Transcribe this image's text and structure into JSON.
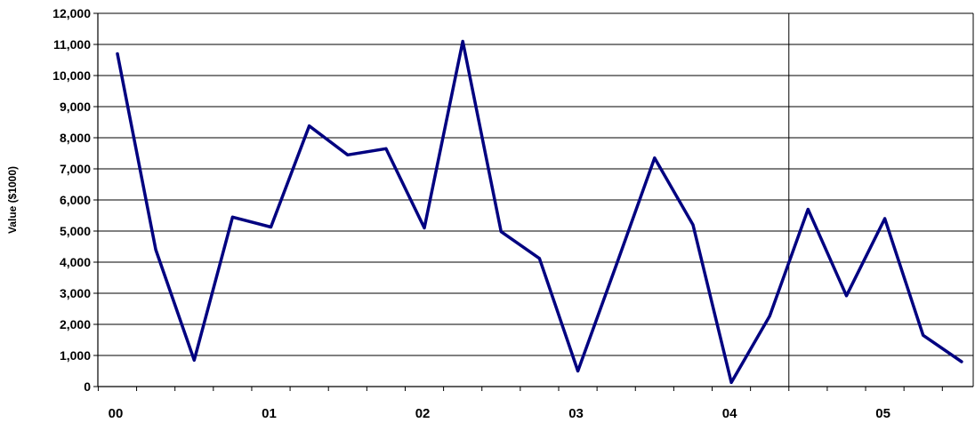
{
  "chart_data": {
    "type": "line",
    "title": "",
    "xlabel": "",
    "ylabel": "Value ($1000)",
    "ylim": [
      0,
      12000
    ],
    "yticks": [
      "0",
      "1,000",
      "2,000",
      "3,000",
      "4,000",
      "5,000",
      "6,000",
      "7,000",
      "8,000",
      "9,000",
      "10,000",
      "11,000",
      "12,000"
    ],
    "x_tick_labels": [
      "00",
      "01",
      "02",
      "03",
      "04",
      "05"
    ],
    "grid": "horizontal",
    "vertical_marker_after_point": 17,
    "line_color": "#000080",
    "series": [
      {
        "values": [
          10700,
          4400,
          850,
          5450,
          5130,
          8380,
          7450,
          7650,
          5100,
          11100,
          4980,
          4120,
          500,
          3900,
          7350,
          5200,
          130,
          2270,
          5700,
          2920,
          5400,
          1650,
          800
        ]
      }
    ]
  }
}
